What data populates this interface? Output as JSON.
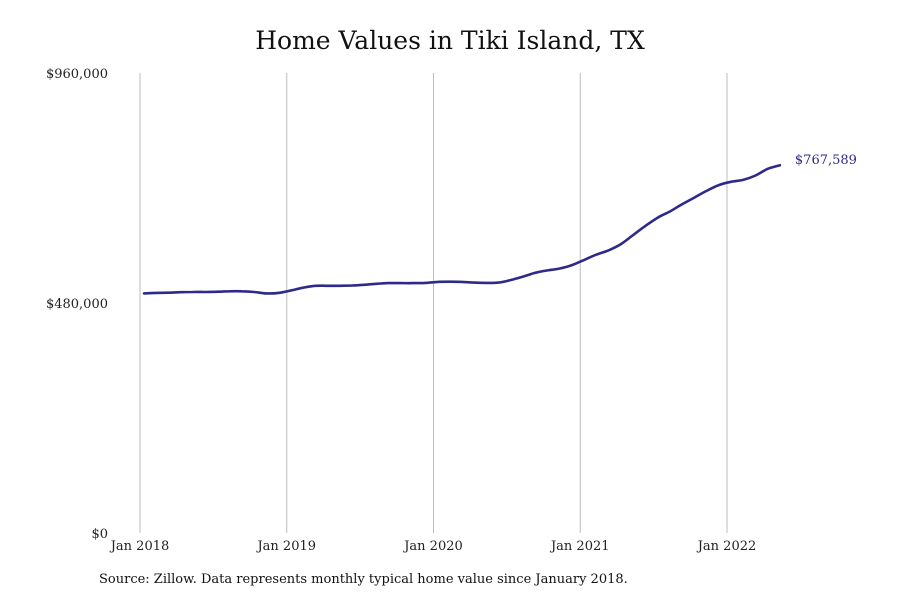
{
  "chart_data": {
    "type": "line",
    "title": "Home Values in Tiki Island, TX",
    "xlabel": "",
    "ylabel": "",
    "ylim": [
      0,
      960000
    ],
    "y_ticks": [
      "$960,000",
      "$480,000",
      "$0"
    ],
    "y_tick_values": [
      960000,
      480000,
      0
    ],
    "x_ticks": [
      "Jan 2018",
      "Jan 2019",
      "Jan 2020",
      "Jan 2021",
      "Jan 2022"
    ],
    "x_tick_values": [
      "2018-01",
      "2019-01",
      "2020-01",
      "2021-01",
      "2022-01"
    ],
    "grid": "vertical",
    "line_color": "#2e2a8a",
    "end_label": "$767,589",
    "series": [
      {
        "x": [
          "2018-01",
          "2018-02",
          "2018-03",
          "2018-04",
          "2018-05",
          "2018-06",
          "2018-07",
          "2018-08",
          "2018-09",
          "2018-10",
          "2018-11",
          "2018-12",
          "2019-01",
          "2019-02",
          "2019-03",
          "2019-04",
          "2019-05",
          "2019-06",
          "2019-07",
          "2019-08",
          "2019-09",
          "2019-10",
          "2019-11",
          "2019-12",
          "2020-01",
          "2020-02",
          "2020-03",
          "2020-04",
          "2020-05",
          "2020-06",
          "2020-07",
          "2020-08",
          "2020-09",
          "2020-10",
          "2020-11",
          "2020-12",
          "2021-01",
          "2021-02",
          "2021-03",
          "2021-04",
          "2021-05",
          "2021-06",
          "2021-07",
          "2021-08",
          "2021-09",
          "2021-10",
          "2021-11",
          "2021-12",
          "2022-01",
          "2022-02",
          "2022-03",
          "2022-04",
          "2022-05"
        ],
        "values": [
          500000,
          501000,
          501500,
          502500,
          503000,
          503000,
          503500,
          504500,
          504500,
          503000,
          500000,
          501000,
          506000,
          512000,
          516000,
          516000,
          516000,
          516500,
          518000,
          520000,
          521500,
          521500,
          521500,
          522000,
          524000,
          524500,
          524000,
          522500,
          522000,
          522500,
          528000,
          535000,
          543000,
          548000,
          552000,
          559000,
          570000,
          581000,
          590000,
          603000,
          622000,
          641000,
          658000,
          671000,
          686000,
          700000,
          714000,
          726000,
          733000,
          737000,
          746000,
          760000,
          767589
        ]
      }
    ]
  },
  "source_note": "Source: Zillow. Data represents monthly typical home value since January 2018."
}
